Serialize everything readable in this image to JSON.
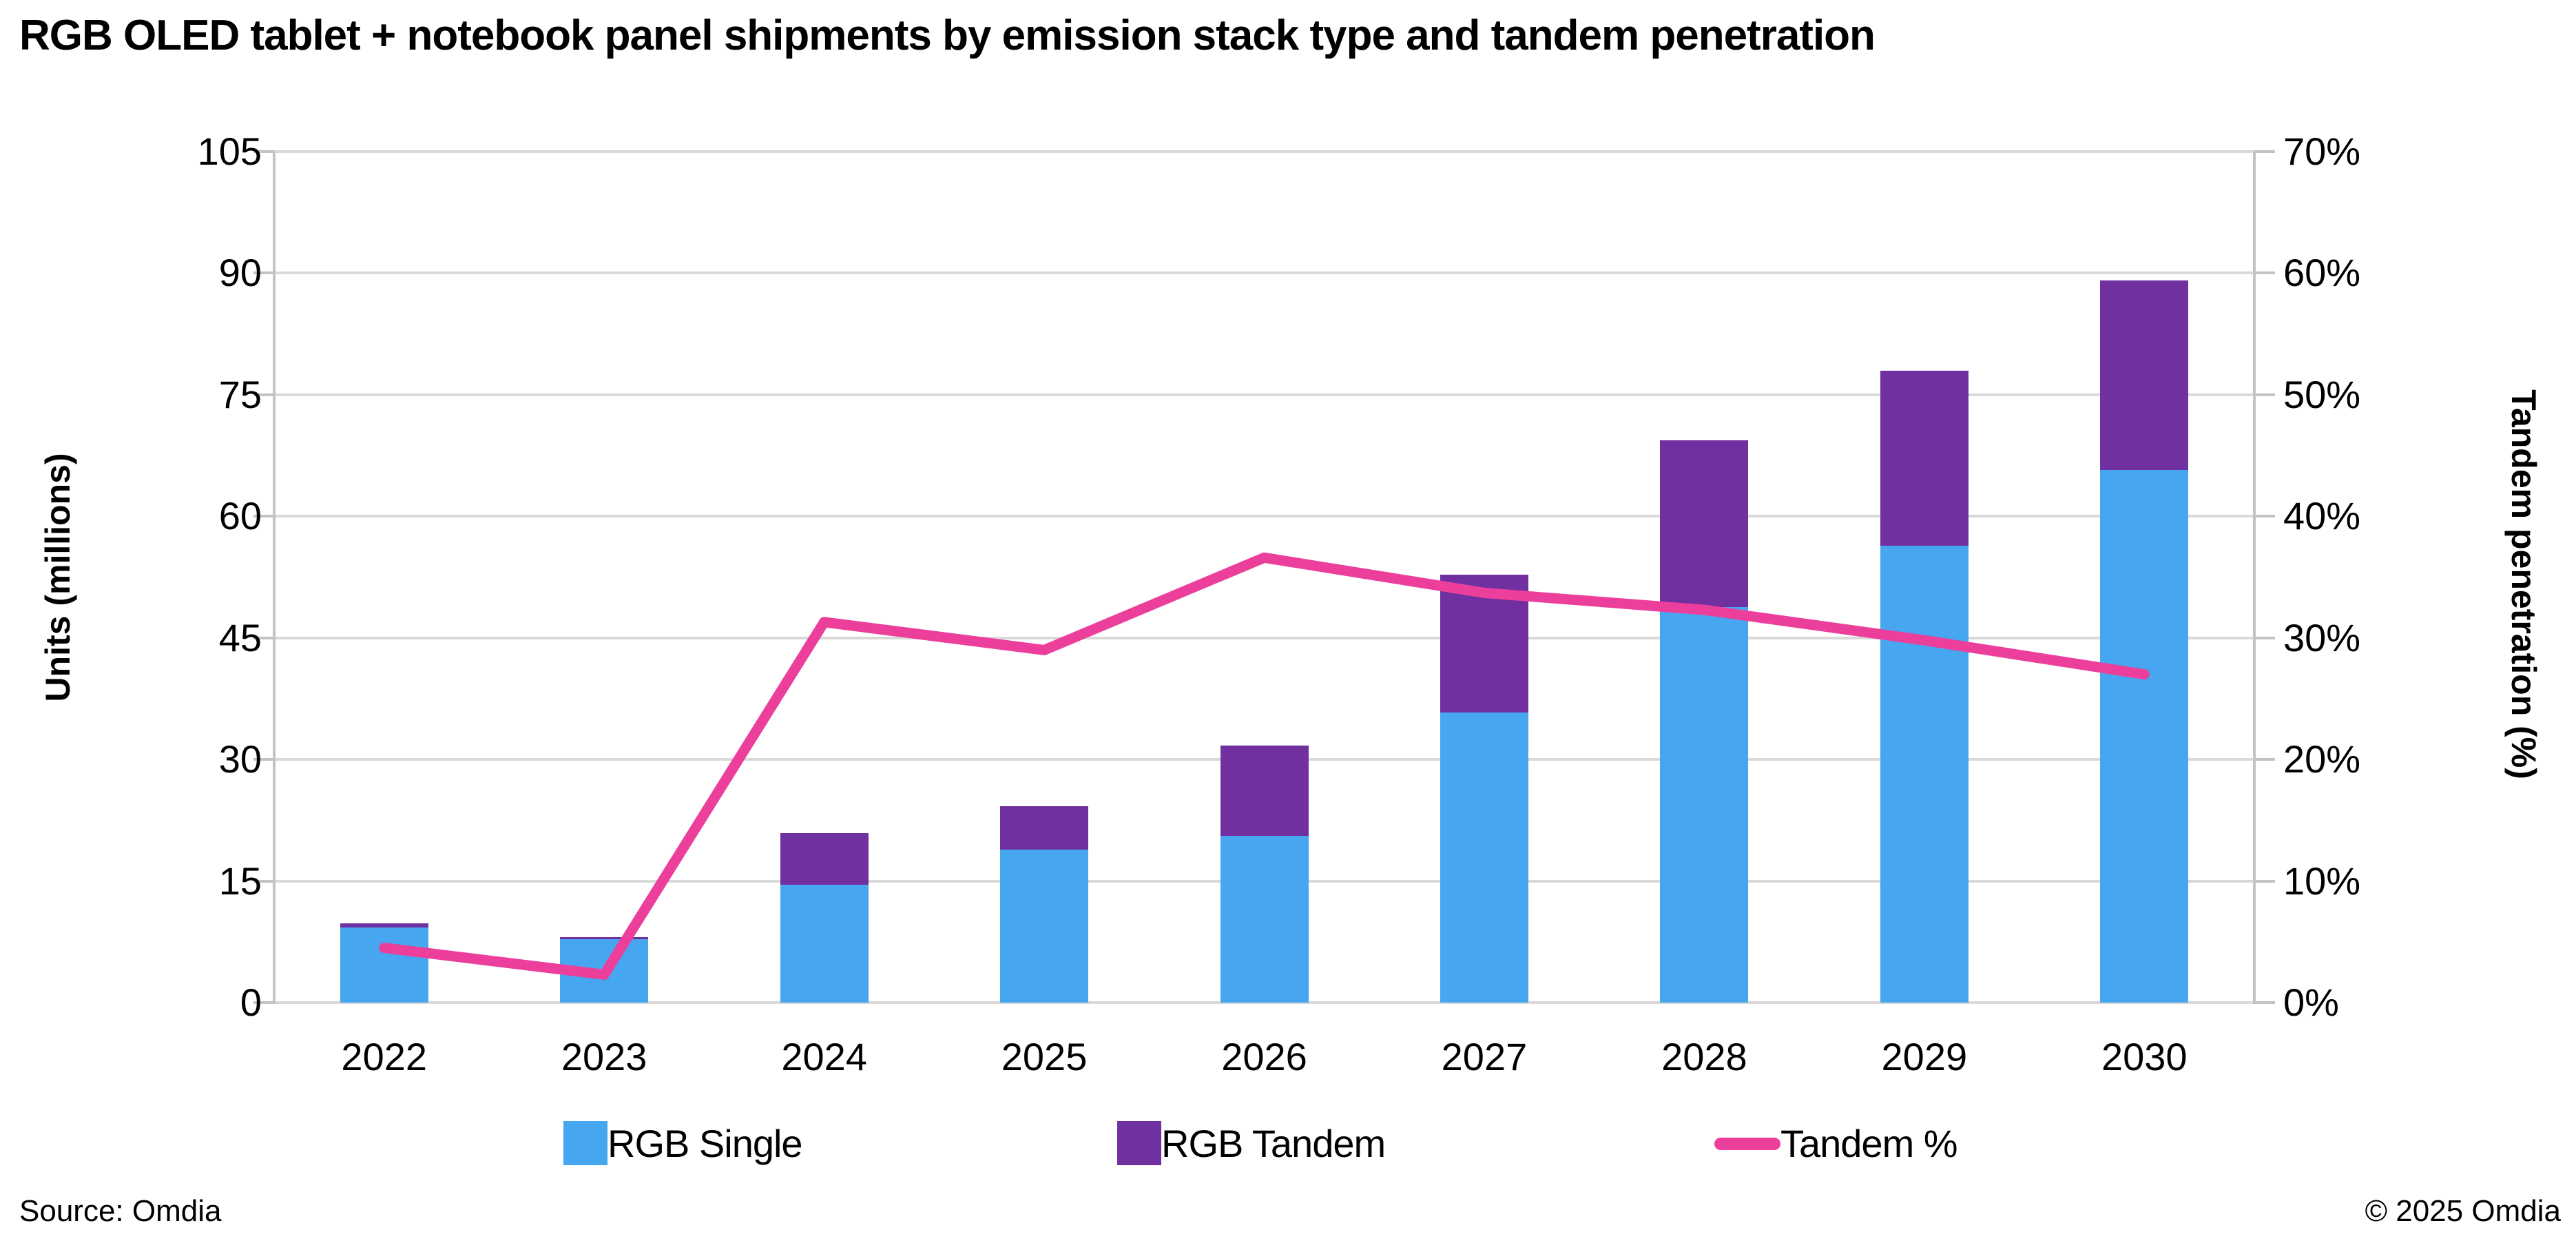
{
  "title": "RGB OLED tablet + notebook panel shipments by emission stack type and tandem penetration",
  "footer": {
    "source": "Source: Omdia",
    "copyright": "© 2025 Omdia"
  },
  "colors": {
    "rgb_single": "#47A6F0",
    "rgb_tandem": "#7030A0",
    "tandem_line": "#EC3F9C",
    "gridline": "#D9D9D9",
    "axis": "#C3C3C3",
    "text": "#000000",
    "background": "#FFFFFF"
  },
  "chart_data": {
    "type": "bar",
    "subtype": "stacked-bar-with-line",
    "title": "RGB OLED tablet + notebook panel shipments by emission stack type and tandem penetration",
    "categories": [
      "2022",
      "2023",
      "2024",
      "2025",
      "2026",
      "2027",
      "2028",
      "2029",
      "2030"
    ],
    "series": [
      {
        "name": "RGB Single",
        "type": "bar",
        "stack": "units",
        "axis": "left",
        "color": "#47A6F0",
        "values": [
          9.3,
          7.8,
          14.5,
          18.9,
          20.6,
          35.8,
          48.8,
          56.4,
          65.7
        ]
      },
      {
        "name": "RGB Tandem",
        "type": "bar",
        "stack": "units",
        "axis": "left",
        "color": "#7030A0",
        "values": [
          0.5,
          0.3,
          6.4,
          5.3,
          11.1,
          17.0,
          20.6,
          21.6,
          23.4
        ]
      },
      {
        "name": "Tandem %",
        "type": "line",
        "axis": "right",
        "color": "#EC3F9C",
        "values": [
          4.5,
          2.3,
          31.3,
          29.0,
          36.6,
          33.7,
          32.3,
          29.8,
          27.0
        ]
      }
    ],
    "left_axis": {
      "title": "Units (millions)",
      "ticks": [
        "0",
        "15",
        "30",
        "45",
        "60",
        "75",
        "90",
        "105"
      ],
      "range": [
        0,
        105
      ]
    },
    "right_axis": {
      "title": "Tandem penetration (%)",
      "ticks": [
        "0%",
        "10%",
        "20%",
        "30%",
        "40%",
        "50%",
        "60%",
        "70%"
      ],
      "range": [
        0,
        70
      ]
    },
    "grid": true,
    "legend_position": "bottom"
  }
}
